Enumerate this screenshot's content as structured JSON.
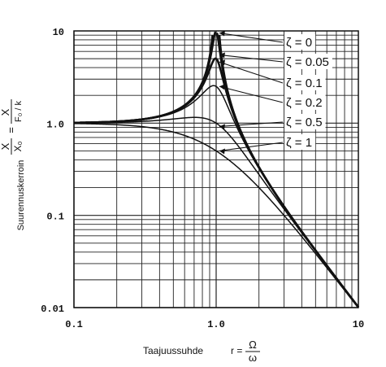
{
  "chart_data": {
    "type": "line",
    "xscale": "log",
    "yscale": "log",
    "xlim": [
      0.1,
      10
    ],
    "ylim": [
      0.01,
      10
    ],
    "grid": true,
    "x_ticks": [
      "0.1",
      "1.0",
      "10"
    ],
    "y_ticks": [
      "10",
      "1.0",
      "0.1",
      "0.01"
    ],
    "xlabel": "Taajuussuhde",
    "xlabel_formula": {
      "lhs": "r =",
      "num": "Ω",
      "den": "ω"
    },
    "ylabel": "Suurennuskerroin",
    "ylabel_formula": {
      "lhs_num": "X",
      "lhs_den": "X₀",
      "eq": "=",
      "rhs_num": "X",
      "rhs_den": "F₀ / k"
    },
    "legend_placement": "right",
    "series": [
      {
        "name": "ζ = 0",
        "zeta": 0
      },
      {
        "name": "ζ = 0.05",
        "zeta": 0.05
      },
      {
        "name": "ζ = 0.1",
        "zeta": 0.1
      },
      {
        "name": "ζ = 0.2",
        "zeta": 0.2
      },
      {
        "name": "ζ = 0.5",
        "zeta": 0.5
      },
      {
        "name": "ζ = 1",
        "zeta": 1
      }
    ],
    "legend_points": [
      {
        "r": 1.0,
        "y": 9.5
      },
      {
        "r": 1.0,
        "y": 5.5
      },
      {
        "r": 1.0,
        "y": 4.6
      },
      {
        "r": 1.0,
        "y": 2.5
      },
      {
        "r": 1.0,
        "y": 0.92
      },
      {
        "r": 1.0,
        "y": 0.5
      }
    ]
  }
}
